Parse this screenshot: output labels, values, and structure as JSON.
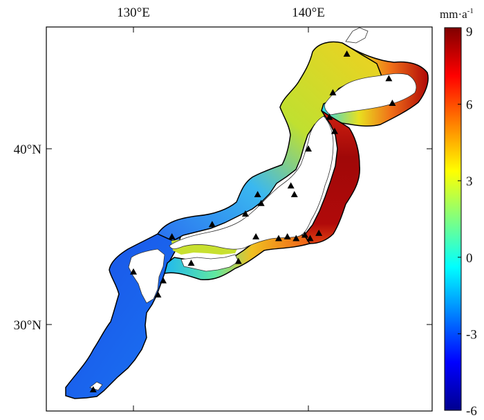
{
  "map": {
    "lon_ticks": [
      {
        "label": "130°E",
        "lon": 130
      },
      {
        "label": "140°E",
        "lon": 140
      }
    ],
    "lat_ticks": [
      {
        "label": "40°N",
        "lat": 40
      },
      {
        "label": "30°N",
        "lat": 30
      }
    ],
    "extent": {
      "lon_min": 125,
      "lon_max": 147,
      "lat_min": 25,
      "lat_max": 47
    },
    "stations_marker": "black-triangle",
    "stations": [
      {
        "lon": 142.2,
        "lat": 45.4
      },
      {
        "lon": 144.6,
        "lat": 44.0
      },
      {
        "lon": 141.4,
        "lat": 43.2
      },
      {
        "lon": 144.8,
        "lat": 42.6
      },
      {
        "lon": 141.2,
        "lat": 41.8
      },
      {
        "lon": 141.5,
        "lat": 41.0
      },
      {
        "lon": 140.0,
        "lat": 40.0
      },
      {
        "lon": 139.0,
        "lat": 37.9
      },
      {
        "lon": 139.2,
        "lat": 37.4
      },
      {
        "lon": 137.1,
        "lat": 37.4
      },
      {
        "lon": 137.3,
        "lat": 36.9
      },
      {
        "lon": 136.4,
        "lat": 36.3
      },
      {
        "lon": 134.5,
        "lat": 35.7
      },
      {
        "lon": 132.2,
        "lat": 35.0
      },
      {
        "lon": 137.0,
        "lat": 35.0
      },
      {
        "lon": 138.8,
        "lat": 35.0
      },
      {
        "lon": 139.3,
        "lat": 34.9
      },
      {
        "lon": 139.8,
        "lat": 35.1
      },
      {
        "lon": 140.1,
        "lat": 34.9
      },
      {
        "lon": 140.6,
        "lat": 35.2
      },
      {
        "lon": 138.3,
        "lat": 34.9
      },
      {
        "lon": 136.0,
        "lat": 33.6
      },
      {
        "lon": 133.3,
        "lat": 33.5
      },
      {
        "lon": 130.0,
        "lat": 33.0
      },
      {
        "lon": 131.7,
        "lat": 32.5
      },
      {
        "lon": 131.4,
        "lat": 31.7
      },
      {
        "lon": 127.7,
        "lat": 26.3
      }
    ]
  },
  "colorbar": {
    "unit": "mm·a",
    "unit_sup": "-1",
    "min": -6,
    "max": 9,
    "ticks": [
      {
        "label": "9",
        "value": 9
      },
      {
        "label": "6",
        "value": 6
      },
      {
        "label": "3",
        "value": 3
      },
      {
        "label": "0",
        "value": 0
      },
      {
        "label": "-3",
        "value": -3
      },
      {
        "label": "-6",
        "value": -6
      }
    ],
    "colors": [
      "#00008f",
      "#0000ff",
      "#0080ff",
      "#00ffff",
      "#80ff80",
      "#ffff00",
      "#ff8000",
      "#ff0000",
      "#800000"
    ]
  },
  "coast_bands": [
    {
      "name": "nansei-islands",
      "color": "#1c4fe6",
      "end_color": "#40c8e0"
    },
    {
      "name": "kyushu-west",
      "color": "#1f4fe8"
    },
    {
      "name": "japan-sea-west",
      "color": "#2a6cf0"
    },
    {
      "name": "japan-sea-center",
      "color": "#1fc8f0"
    },
    {
      "name": "japan-sea-north",
      "color": "#b8e830"
    },
    {
      "name": "tohoku-west",
      "color": "#45e0d8"
    },
    {
      "name": "hokkaido-west",
      "color": "#2ad8f0"
    },
    {
      "name": "hokkaido-north",
      "color": "#f0d820"
    },
    {
      "name": "hokkaido-east",
      "color": "#c81010"
    },
    {
      "name": "pacific-tohoku",
      "color": "#a80808"
    },
    {
      "name": "pacific-kanto",
      "color": "#e03010"
    },
    {
      "name": "inland-sea",
      "color": "#c8e020"
    },
    {
      "name": "pacific-shikoku",
      "color": "#f0c020"
    }
  ]
}
